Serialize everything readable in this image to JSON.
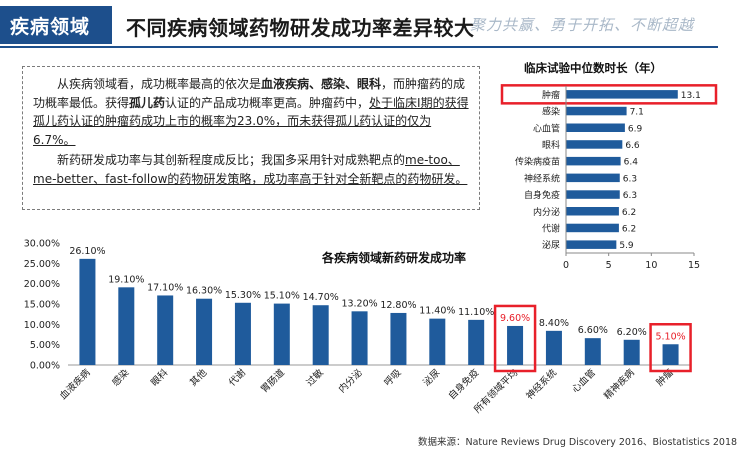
{
  "header": {
    "tag": "疾病领域",
    "title": "不同疾病领域药物研发成功率差异较大",
    "slogan": "聚力共赢、勇于开拓、不断超越",
    "colors": {
      "brand": "#1d4f8c",
      "slogan": "#a9b8c8"
    }
  },
  "textbox": {
    "p1_a": "从疾病领域看，成功概率最高的依次是",
    "p1_b": "血液疾病、感染、眼科",
    "p1_c": "，而肿瘤药的成功概率最低。获得",
    "p1_d": "孤儿药",
    "p1_e": "认证的产品成功概率更高。肿瘤药中，",
    "p1_f": "处于临床I期的获得孤儿药认证的肿瘤药成功上市的概率为23.0%，而未获得孤儿药认证的仅为6.7%。",
    "p2_a": "新药研发成功率与其创新程度成反比；我国多采用针对成熟靶点的",
    "p2_b": "me-too、me-better、fast-follow的药物研发策略，成功率高于针对全新靶点的药物研发。"
  },
  "source": "数据来源：Nature Reviews Drug Discovery 2016、Biostatistics 2018",
  "chart_data": [
    {
      "type": "bar",
      "orientation": "horizontal",
      "title": "临床试验中位数时长（年）",
      "categories": [
        "肿瘤",
        "感染",
        "心血管",
        "眼科",
        "传染病疫苗",
        "神经系统",
        "自身免疫",
        "内分泌",
        "代谢",
        "泌尿"
      ],
      "values": [
        13.1,
        7.1,
        6.9,
        6.6,
        6.4,
        6.3,
        6.3,
        6.2,
        6.2,
        5.9
      ],
      "value_labels": [
        "13.1",
        "7.1",
        "6.9",
        "6.6",
        "6.4",
        "6.3",
        "6.3",
        "6.2",
        "6.2",
        "5.9"
      ],
      "xlim": [
        0,
        15
      ],
      "xticks": [
        "0",
        "5",
        "10",
        "15"
      ],
      "highlight": [
        "肿瘤"
      ],
      "bar_color": "#1f5b9c",
      "highlight_color": "#e8202a",
      "grid": false
    },
    {
      "type": "bar",
      "orientation": "vertical",
      "title": "各疾病领域新药研发成功率",
      "categories": [
        "血液疾病",
        "感染",
        "眼科",
        "其他",
        "代谢",
        "胃肠道",
        "过敏",
        "内分泌",
        "呼吸",
        "泌尿",
        "自身免疫",
        "所有领域平均",
        "神经系统",
        "心血管",
        "精神疾病",
        "肿瘤"
      ],
      "values": [
        26.1,
        19.1,
        17.1,
        16.3,
        15.3,
        15.1,
        14.7,
        13.2,
        12.8,
        11.4,
        11.1,
        9.6,
        8.4,
        6.6,
        6.2,
        5.1
      ],
      "value_labels": [
        "26.10%",
        "19.10%",
        "17.10%",
        "16.30%",
        "15.30%",
        "15.10%",
        "14.70%",
        "13.20%",
        "12.80%",
        "11.40%",
        "11.10%",
        "9.60%",
        "8.40%",
        "6.60%",
        "6.20%",
        "5.10%"
      ],
      "ylim": [
        0,
        30
      ],
      "yticks": [
        "0.00%",
        "5.00%",
        "10.00%",
        "15.00%",
        "20.00%",
        "25.00%",
        "30.00%"
      ],
      "highlight": [
        "所有领域平均",
        "肿瘤"
      ],
      "highlight_label_color": "#e8202a",
      "bar_color": "#1f5b9c",
      "highlight_color": "#e8202a",
      "grid": false
    }
  ]
}
